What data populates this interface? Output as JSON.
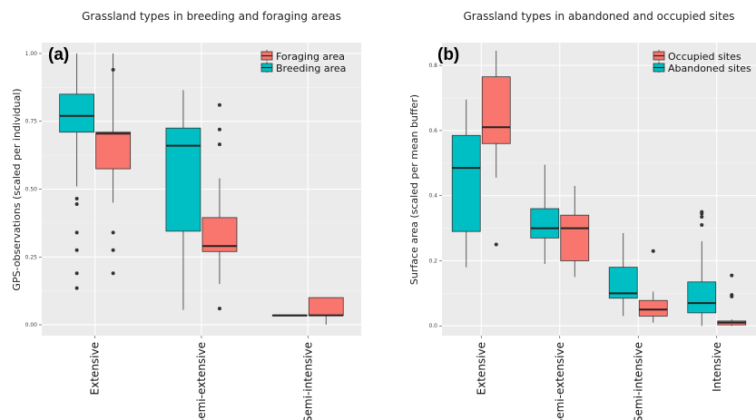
{
  "chart_data": [
    {
      "type": "box",
      "panel_label": "(a)",
      "title": "Grassland types in breeding and foraging areas",
      "ylabel": "GPS-observations  (scaled per individual)",
      "xlabel": "",
      "ylim": [
        -0.04,
        1.04
      ],
      "yticks": [
        0.0,
        0.25,
        0.5,
        0.75,
        1.0
      ],
      "ytick_labels": [
        "0.00",
        "0.25",
        "0.50",
        "0.75",
        "1.00"
      ],
      "categories": [
        "Extensive",
        "Semi-extensive",
        "Semi-intensive"
      ],
      "legend_position": "top-right",
      "grid": true,
      "series": [
        {
          "name": "Foraging area",
          "color": "#F8766D",
          "boxes": [
            {
              "category": "Extensive",
              "whisker_low": 0.45,
              "q1": 0.575,
              "median": 0.705,
              "q3": 0.71,
              "whisker_high": 1.0,
              "outliers": [
                0.94,
                0.34,
                0.275,
                0.19
              ]
            },
            {
              "category": "Semi-extensive",
              "whisker_low": 0.15,
              "q1": 0.27,
              "median": 0.29,
              "q3": 0.395,
              "whisker_high": 0.54,
              "outliers": [
                0.81,
                0.72,
                0.665,
                0.06
              ]
            },
            {
              "category": "Semi-intensive",
              "whisker_low": 0.0,
              "q1": 0.035,
              "median": 0.035,
              "q3": 0.1,
              "whisker_high": 0.1,
              "outliers": []
            }
          ]
        },
        {
          "name": "Breeding area",
          "color": "#00BFC4",
          "boxes": [
            {
              "category": "Extensive",
              "whisker_low": 0.51,
              "q1": 0.71,
              "median": 0.77,
              "q3": 0.85,
              "whisker_high": 1.0,
              "outliers": [
                0.465,
                0.445,
                0.34,
                0.275,
                0.19,
                0.135
              ]
            },
            {
              "category": "Semi-extensive",
              "whisker_low": 0.055,
              "q1": 0.345,
              "median": 0.66,
              "q3": 0.725,
              "whisker_high": 0.865,
              "outliers": []
            },
            {
              "category": "Semi-intensive",
              "whisker_low": 0.035,
              "q1": 0.035,
              "median": 0.035,
              "q3": 0.035,
              "whisker_high": 0.035,
              "outliers": []
            }
          ]
        }
      ]
    },
    {
      "type": "box",
      "panel_label": "(b)",
      "title": "Grassland types in abandoned and occupied sites",
      "ylabel": "Surface area  (scaled per mean buffer)",
      "xlabel": "",
      "ylim": [
        -0.03,
        0.87
      ],
      "yticks": [
        0.0,
        0.2,
        0.4,
        0.6,
        0.8
      ],
      "ytick_labels": [
        "0.0",
        "0.2",
        "0.4",
        "0.6",
        "0.8"
      ],
      "categories": [
        "Extensive",
        "Semi-extensive",
        "Semi-intensive",
        "Intensive"
      ],
      "legend_position": "top-right",
      "grid": true,
      "series": [
        {
          "name": "Occupied sites",
          "color": "#F8766D",
          "boxes": [
            {
              "category": "Extensive",
              "whisker_low": 0.455,
              "q1": 0.56,
              "median": 0.61,
              "q3": 0.765,
              "whisker_high": 0.845,
              "outliers": [
                0.25
              ]
            },
            {
              "category": "Semi-extensive",
              "whisker_low": 0.15,
              "q1": 0.2,
              "median": 0.3,
              "q3": 0.34,
              "whisker_high": 0.43,
              "outliers": []
            },
            {
              "category": "Semi-intensive",
              "whisker_low": 0.01,
              "q1": 0.03,
              "median": 0.05,
              "q3": 0.078,
              "whisker_high": 0.105,
              "outliers": [
                0.23
              ]
            },
            {
              "category": "Intensive",
              "whisker_low": 0.0,
              "q1": 0.003,
              "median": 0.01,
              "q3": 0.015,
              "whisker_high": 0.02,
              "outliers": [
                0.155,
                0.095,
                0.09
              ]
            }
          ]
        },
        {
          "name": "Abandoned sites",
          "color": "#00BFC4",
          "boxes": [
            {
              "category": "Extensive",
              "whisker_low": 0.18,
              "q1": 0.29,
              "median": 0.485,
              "q3": 0.585,
              "whisker_high": 0.695,
              "outliers": []
            },
            {
              "category": "Semi-extensive",
              "whisker_low": 0.19,
              "q1": 0.27,
              "median": 0.3,
              "q3": 0.36,
              "whisker_high": 0.495,
              "outliers": []
            },
            {
              "category": "Semi-intensive",
              "whisker_low": 0.03,
              "q1": 0.085,
              "median": 0.1,
              "q3": 0.18,
              "whisker_high": 0.285,
              "outliers": []
            },
            {
              "category": "Intensive",
              "whisker_low": 0.0,
              "q1": 0.04,
              "median": 0.07,
              "q3": 0.135,
              "whisker_high": 0.26,
              "outliers": [
                0.35,
                0.345,
                0.335,
                0.31
              ]
            }
          ]
        }
      ]
    }
  ]
}
